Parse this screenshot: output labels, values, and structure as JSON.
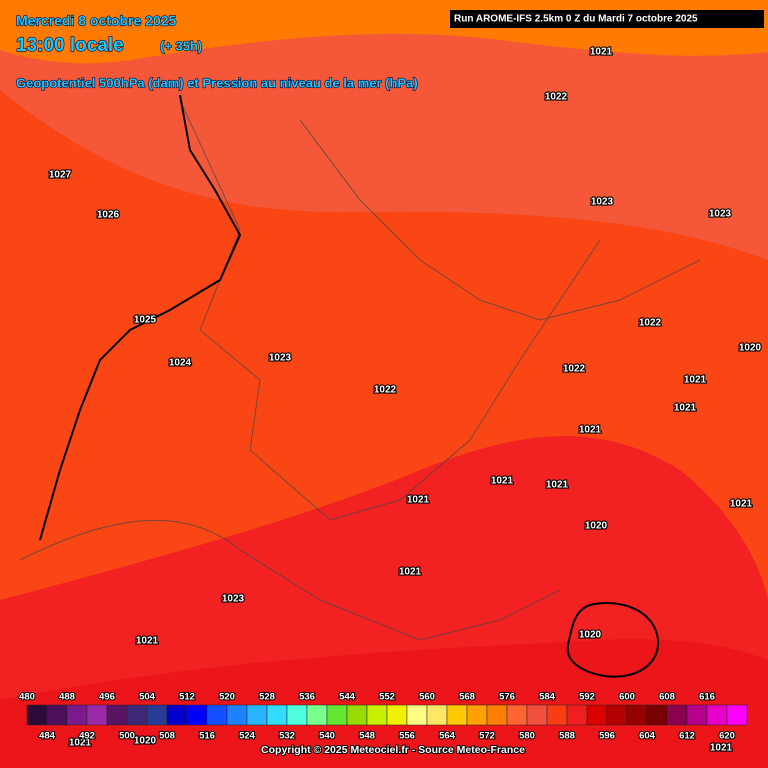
{
  "header": {
    "date": "Mercredi 8 octobre 2025",
    "time": "13:00 locale",
    "lead": "(+ 35h)",
    "subtitle": "Geopotentiel 500hPa (dam) et Pression au niveau de la mer (hPa)",
    "run": "Run AROME-IFS 2.5km 0 Z du Mardi 7 octobre 2025"
  },
  "isobar_labels": [
    1021,
    1022,
    1027,
    1026,
    1023,
    1023,
    1025,
    1022,
    1020,
    1024,
    1023,
    1022,
    1022,
    1021,
    1021,
    1021,
    1021,
    1021,
    1021,
    1021,
    1020,
    1021,
    1023,
    1021,
    1020,
    1021,
    1020,
    1021
  ],
  "colorbar": {
    "top_labels": [
      480,
      488,
      496,
      504,
      512,
      520,
      528,
      536,
      544,
      552,
      560,
      568,
      576,
      584,
      592,
      600,
      608,
      616
    ],
    "bottom_labels": [
      484,
      492,
      500,
      508,
      516,
      524,
      532,
      540,
      548,
      556,
      564,
      572,
      580,
      588,
      596,
      604,
      612,
      620
    ],
    "colors": [
      "#2d0a3a",
      "#4b0f5c",
      "#7a1a8c",
      "#9b2aa8",
      "#5a1464",
      "#3c2a78",
      "#283c96",
      "#0000c8",
      "#0000ff",
      "#1450ff",
      "#1e82ff",
      "#28b4ff",
      "#32dcff",
      "#50ffdc",
      "#78ff8c",
      "#64e632",
      "#96dc00",
      "#c8f000",
      "#f0f000",
      "#ffff80",
      "#ffe664",
      "#ffc800",
      "#ffa000",
      "#ff8000",
      "#ff6432",
      "#f0503c",
      "#fa3c14",
      "#f01e1e",
      "#dc0000",
      "#b40000",
      "#960000",
      "#780000",
      "#8c0050",
      "#b4008c",
      "#e600c8",
      "#ff00ff"
    ]
  },
  "copyright": "Copyright © 2025 Meteociel.fr - Source Meteo-France"
}
